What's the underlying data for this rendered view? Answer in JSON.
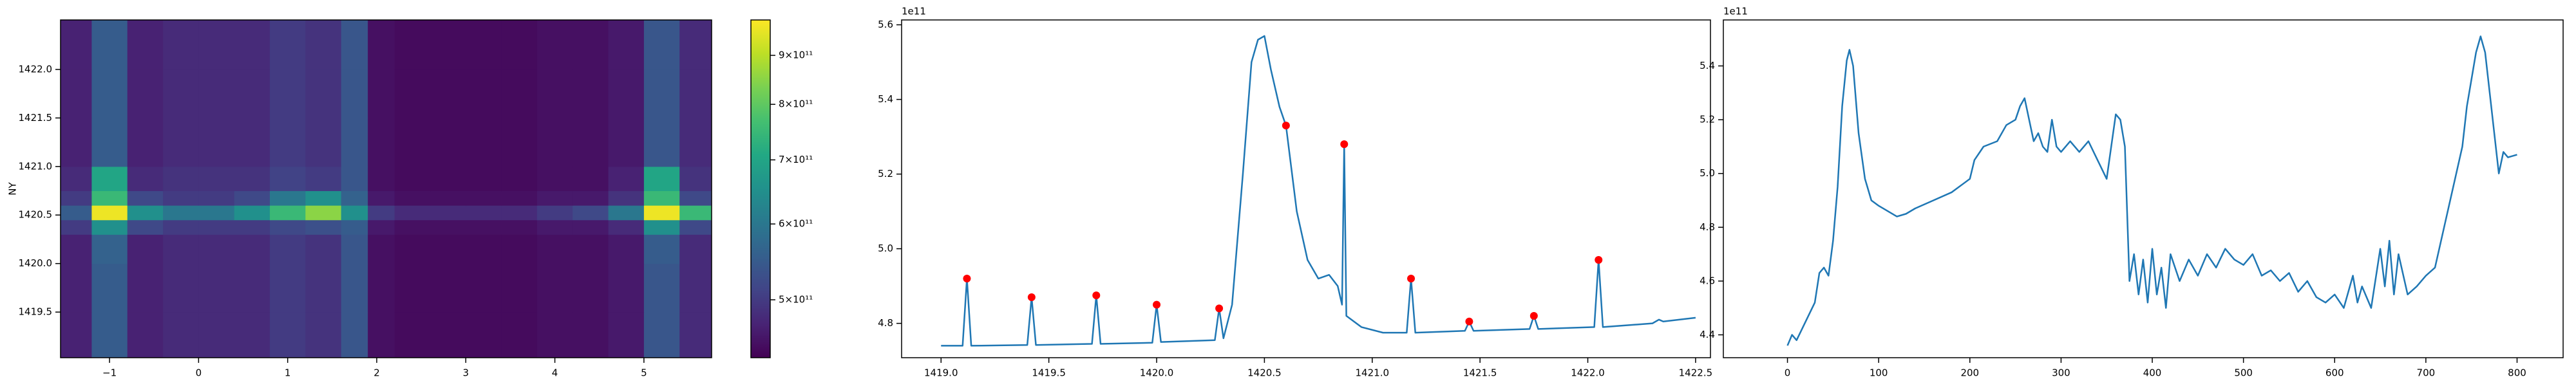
{
  "chart_data": [
    {
      "type": "heatmap",
      "ylabel": "NY",
      "colormap": "viridis",
      "x_edges": [
        -1.55,
        -1.2,
        -0.8,
        -0.4,
        0,
        0.4,
        0.8,
        1.2,
        1.6,
        1.9,
        2.2,
        2.6,
        3,
        3.4,
        3.8,
        4.2,
        4.6,
        5.0,
        5.4,
        5.76
      ],
      "y_edges": [
        1419.03,
        1419.5,
        1420.0,
        1420.3,
        1420.45,
        1420.6,
        1420.75,
        1421.0,
        1421.5,
        1422.0,
        1422.51
      ],
      "z": [
        [
          470000000000.0,
          550000000000.0,
          470000000000.0,
          480000000000.0,
          480000000000.0,
          480000000000.0,
          500000000000.0,
          490000000000.0,
          540000000000.0,
          450000000000.0,
          445000000000.0,
          445000000000.0,
          445000000000.0,
          445000000000.0,
          450000000000.0,
          450000000000.0,
          460000000000.0,
          540000000000.0,
          480000000000.0
        ],
        [
          470000000000.0,
          550000000000.0,
          470000000000.0,
          480000000000.0,
          480000000000.0,
          480000000000.0,
          500000000000.0,
          490000000000.0,
          540000000000.0,
          450000000000.0,
          445000000000.0,
          445000000000.0,
          445000000000.0,
          445000000000.0,
          450000000000.0,
          450000000000.0,
          460000000000.0,
          540000000000.0,
          480000000000.0
        ],
        [
          470000000000.0,
          560000000000.0,
          470000000000.0,
          480000000000.0,
          480000000000.0,
          480000000000.0,
          500000000000.0,
          490000000000.0,
          540000000000.0,
          450000000000.0,
          445000000000.0,
          445000000000.0,
          445000000000.0,
          445000000000.0,
          450000000000.0,
          450000000000.0,
          460000000000.0,
          550000000000.0,
          480000000000.0
        ],
        [
          500000000000.0,
          650000000000.0,
          520000000000.0,
          500000000000.0,
          500000000000.0,
          500000000000.0,
          520000000000.0,
          530000000000.0,
          550000000000.0,
          460000000000.0,
          450000000000.0,
          450000000000.0,
          450000000000.0,
          450000000000.0,
          460000000000.0,
          460000000000.0,
          480000000000.0,
          650000000000.0,
          520000000000.0
        ],
        [
          550000000000.0,
          960000000000.0,
          650000000000.0,
          600000000000.0,
          600000000000.0,
          650000000000.0,
          750000000000.0,
          850000000000.0,
          650000000000.0,
          500000000000.0,
          480000000000.0,
          480000000000.0,
          480000000000.0,
          480000000000.0,
          500000000000.0,
          520000000000.0,
          600000000000.0,
          960000000000.0,
          750000000000.0
        ],
        [
          500000000000.0,
          750000000000.0,
          520000000000.0,
          500000000000.0,
          500000000000.0,
          520000000000.0,
          600000000000.0,
          650000000000.0,
          560000000000.0,
          460000000000.0,
          450000000000.0,
          450000000000.0,
          450000000000.0,
          450000000000.0,
          460000000000.0,
          460000000000.0,
          490000000000.0,
          750000000000.0,
          520000000000.0
        ],
        [
          480000000000.0,
          700000000000.0,
          480000000000.0,
          490000000000.0,
          490000000000.0,
          490000000000.0,
          510000000000.0,
          500000000000.0,
          540000000000.0,
          450000000000.0,
          445000000000.0,
          445000000000.0,
          445000000000.0,
          445000000000.0,
          450000000000.0,
          450000000000.0,
          470000000000.0,
          700000000000.0,
          490000000000.0
        ],
        [
          470000000000.0,
          550000000000.0,
          470000000000.0,
          480000000000.0,
          480000000000.0,
          480000000000.0,
          500000000000.0,
          490000000000.0,
          540000000000.0,
          450000000000.0,
          445000000000.0,
          445000000000.0,
          445000000000.0,
          445000000000.0,
          450000000000.0,
          450000000000.0,
          460000000000.0,
          540000000000.0,
          480000000000.0
        ],
        [
          470000000000.0,
          550000000000.0,
          470000000000.0,
          480000000000.0,
          480000000000.0,
          480000000000.0,
          500000000000.0,
          490000000000.0,
          540000000000.0,
          450000000000.0,
          445000000000.0,
          445000000000.0,
          445000000000.0,
          445000000000.0,
          450000000000.0,
          450000000000.0,
          460000000000.0,
          540000000000.0,
          480000000000.0
        ],
        [
          470000000000.0,
          550000000000.0,
          470000000000.0,
          480000000000.0,
          480000000000.0,
          480000000000.0,
          500000000000.0,
          490000000000.0,
          540000000000.0,
          450000000000.0,
          445000000000.0,
          445000000000.0,
          445000000000.0,
          445000000000.0,
          450000000000.0,
          450000000000.0,
          460000000000.0,
          540000000000.0,
          480000000000.0
        ]
      ],
      "xlim": [
        -1.55,
        5.76
      ],
      "ylim": [
        1419.03,
        1422.51
      ],
      "xticks": [
        {
          "value": -1,
          "label": "−1"
        },
        0,
        1,
        2,
        3,
        4,
        5
      ],
      "yticks": [
        1419.5,
        {
          "value": 1420,
          "label": "1420.0"
        },
        1420.5,
        {
          "value": 1421,
          "label": "1421.0"
        },
        1421.5,
        {
          "value": 1422,
          "label": "1422.0"
        }
      ],
      "colorbar": {
        "lim": [
          435000000000.0,
          980000000000.0
        ],
        "scale": "log",
        "ticks": [
          {
            "value": 500000000000.0,
            "label": "5×10¹¹"
          },
          {
            "value": 600000000000.0,
            "label": "6×10¹¹"
          },
          {
            "value": 700000000000.0,
            "label": "7×10¹¹"
          },
          {
            "value": 800000000000.0,
            "label": "8×10¹¹"
          },
          {
            "value": 900000000000.0,
            "label": "9×10¹¹"
          }
        ]
      }
    },
    {
      "type": "line",
      "offset_text": "1e11",
      "x": [
        1419.0,
        1419.1,
        1419.12,
        1419.14,
        1419.4,
        1419.42,
        1419.44,
        1419.7,
        1419.72,
        1419.74,
        1419.98,
        1420.0,
        1420.02,
        1420.27,
        1420.29,
        1420.31,
        1420.35,
        1420.4,
        1420.44,
        1420.47,
        1420.5,
        1420.53,
        1420.57,
        1420.6,
        1420.65,
        1420.7,
        1420.75,
        1420.8,
        1420.84,
        1420.86,
        1420.87,
        1420.88,
        1420.95,
        1421.05,
        1421.16,
        1421.18,
        1421.2,
        1421.43,
        1421.45,
        1421.47,
        1421.73,
        1421.75,
        1421.77,
        1422.03,
        1422.05,
        1422.07,
        1422.3,
        1422.33,
        1422.35,
        1422.5
      ],
      "series": [
        {
          "color": "#1f77b4",
          "style": "line",
          "values": [
            4.74,
            4.74,
            4.92,
            4.74,
            4.742,
            4.87,
            4.742,
            4.745,
            4.875,
            4.745,
            4.748,
            4.85,
            4.75,
            4.755,
            4.84,
            4.76,
            4.85,
            5.2,
            5.5,
            5.56,
            5.57,
            5.48,
            5.38,
            5.33,
            5.1,
            4.97,
            4.92,
            4.93,
            4.9,
            4.85,
            5.28,
            4.82,
            4.79,
            4.775,
            4.775,
            4.92,
            4.775,
            4.78,
            4.805,
            4.78,
            4.785,
            4.82,
            4.785,
            4.79,
            4.97,
            4.79,
            4.8,
            4.81,
            4.805,
            4.815
          ]
        },
        {
          "color": "red",
          "style": "markers",
          "x": [
            1419.12,
            1419.42,
            1419.72,
            1420.0,
            1420.29,
            1420.6,
            1420.87,
            1421.18,
            1421.45,
            1421.75,
            1422.05
          ],
          "values": [
            4.92,
            4.87,
            4.875,
            4.85,
            4.84,
            5.33,
            5.28,
            4.92,
            4.805,
            4.82,
            4.97
          ]
        }
      ],
      "xlim": [
        1418.817,
        1422.569
      ],
      "ylim": [
        4.708,
        5.613
      ],
      "xticks": [
        {
          "value": 1419,
          "label": "1419.0"
        },
        1419.5,
        {
          "value": 1420,
          "label": "1420.0"
        },
        1420.5,
        {
          "value": 1421,
          "label": "1421.0"
        },
        1421.5,
        {
          "value": 1422,
          "label": "1422.0"
        },
        1422.5
      ],
      "yticks": [
        4.8,
        {
          "value": 5,
          "label": "5.0"
        },
        5.2,
        5.4,
        5.6
      ]
    },
    {
      "type": "line",
      "offset_text": "1e11",
      "x": [
        0,
        5,
        10,
        20,
        30,
        35,
        40,
        45,
        50,
        55,
        60,
        65,
        68,
        72,
        78,
        85,
        92,
        100,
        110,
        120,
        130,
        140,
        160,
        180,
        200,
        205,
        215,
        230,
        240,
        250,
        255,
        260,
        265,
        270,
        275,
        280,
        285,
        290,
        295,
        300,
        310,
        320,
        330,
        340,
        350,
        355,
        360,
        365,
        370,
        375,
        380,
        385,
        390,
        395,
        400,
        405,
        410,
        415,
        420,
        430,
        440,
        450,
        460,
        470,
        480,
        490,
        500,
        510,
        520,
        530,
        540,
        550,
        560,
        570,
        580,
        590,
        600,
        610,
        620,
        625,
        630,
        640,
        650,
        655,
        660,
        665,
        670,
        680,
        690,
        700,
        710,
        720,
        730,
        740,
        745,
        750,
        755,
        760,
        765,
        770,
        775,
        780,
        785,
        790,
        800
      ],
      "series": [
        {
          "color": "#1f77b4",
          "style": "line",
          "values": [
            4.36,
            4.4,
            4.38,
            4.45,
            4.52,
            4.63,
            4.65,
            4.62,
            4.75,
            4.95,
            5.25,
            5.42,
            5.46,
            5.4,
            5.15,
            4.98,
            4.9,
            4.88,
            4.86,
            4.84,
            4.85,
            4.87,
            4.9,
            4.93,
            4.98,
            5.05,
            5.1,
            5.12,
            5.18,
            5.2,
            5.25,
            5.28,
            5.2,
            5.12,
            5.15,
            5.1,
            5.08,
            5.2,
            5.1,
            5.08,
            5.12,
            5.08,
            5.12,
            5.05,
            4.98,
            5.1,
            5.22,
            5.2,
            5.1,
            4.6,
            4.7,
            4.55,
            4.68,
            4.52,
            4.72,
            4.55,
            4.65,
            4.5,
            4.7,
            4.6,
            4.68,
            4.62,
            4.7,
            4.65,
            4.72,
            4.68,
            4.66,
            4.7,
            4.62,
            4.64,
            4.6,
            4.63,
            4.56,
            4.6,
            4.54,
            4.52,
            4.55,
            4.5,
            4.62,
            4.52,
            4.58,
            4.5,
            4.72,
            4.58,
            4.75,
            4.55,
            4.7,
            4.55,
            4.58,
            4.62,
            4.65,
            4.8,
            4.95,
            5.1,
            5.25,
            5.35,
            5.45,
            5.51,
            5.45,
            5.3,
            5.15,
            5.0,
            5.08,
            5.06,
            5.07
          ]
        }
      ],
      "xlim": [
        -70.3,
        850.5
      ],
      "ylim": [
        4.315,
        5.571
      ],
      "xticks": [
        0,
        100,
        200,
        300,
        400,
        500,
        600,
        700,
        800
      ],
      "yticks": [
        4.4,
        4.6,
        4.8,
        {
          "value": 5,
          "label": "5.0"
        },
        5.2,
        5.4
      ]
    }
  ]
}
